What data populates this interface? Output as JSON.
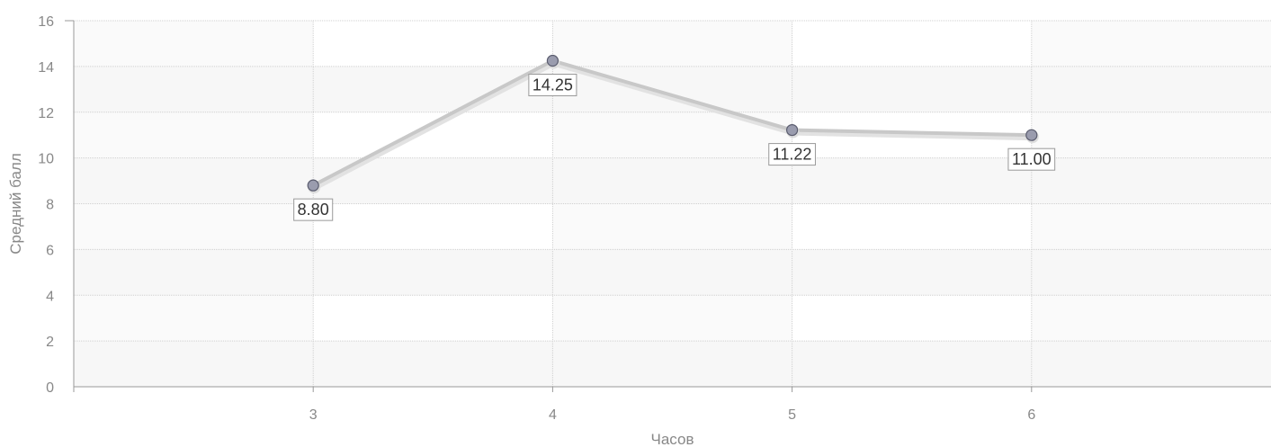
{
  "chart_data": {
    "type": "line",
    "title": "",
    "xlabel": "Часов",
    "ylabel": "Средний балл",
    "categories": [
      "3",
      "4",
      "5",
      "6"
    ],
    "x_values": [
      3,
      4,
      5,
      6
    ],
    "xlim": [
      2,
      7
    ],
    "ylim": [
      0,
      16
    ],
    "y_ticks": [
      0,
      2,
      4,
      6,
      8,
      10,
      12,
      14,
      16
    ],
    "x_ticks": [
      3,
      4,
      5,
      6
    ],
    "series": [
      {
        "values": [
          8.8,
          14.25,
          11.22,
          11.0
        ],
        "data_labels": [
          "8.80",
          "14.25",
          "11.22",
          "11.00"
        ]
      }
    ],
    "grid": true,
    "legend": "none",
    "colors": {
      "line": "#c8c8c8",
      "line_shadow": "#e2e2e2",
      "marker_fill": "#9a9cae",
      "marker_stroke": "#5a5c6e",
      "grid": "#cfcfcf",
      "band": "#f7f7f7",
      "axis": "#999999",
      "text": "#888888",
      "label_border": "#999999"
    }
  }
}
